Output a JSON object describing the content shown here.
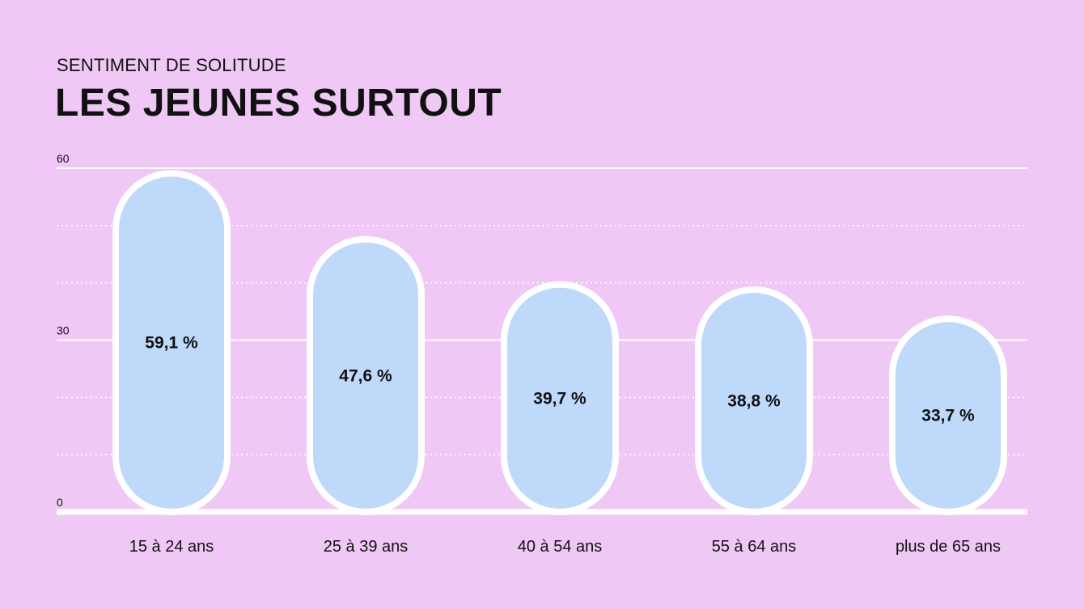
{
  "header": {
    "subtitle": "SENTIMENT DE SOLITUDE",
    "title": "LES JEUNES SURTOUT"
  },
  "colors": {
    "background": "#f0c8f5",
    "bar_fill": "#bfd9fb",
    "bar_stroke": "#ffffff",
    "grid": "#ffffff",
    "text": "#111111"
  },
  "chart_data": {
    "type": "bar",
    "title": "LES JEUNES SURTOUT",
    "subtitle": "SENTIMENT DE SOLITUDE",
    "categories": [
      "15 à 24 ans",
      "25 à 39 ans",
      "40 à 54 ans",
      "55 à 64 ans",
      "plus de 65 ans"
    ],
    "values": [
      59.1,
      47.6,
      39.7,
      38.8,
      33.7
    ],
    "value_labels": [
      "59,1 %",
      "47,6 %",
      "39,7 %",
      "38,8 %",
      "33,7 %"
    ],
    "ylim": [
      0,
      60
    ],
    "y_ticks": [
      0,
      30,
      60
    ],
    "y_tick_labels": [
      "0",
      "30",
      "60"
    ],
    "minor_grid_step": 10,
    "grid": true,
    "bar_shape": "pill"
  }
}
